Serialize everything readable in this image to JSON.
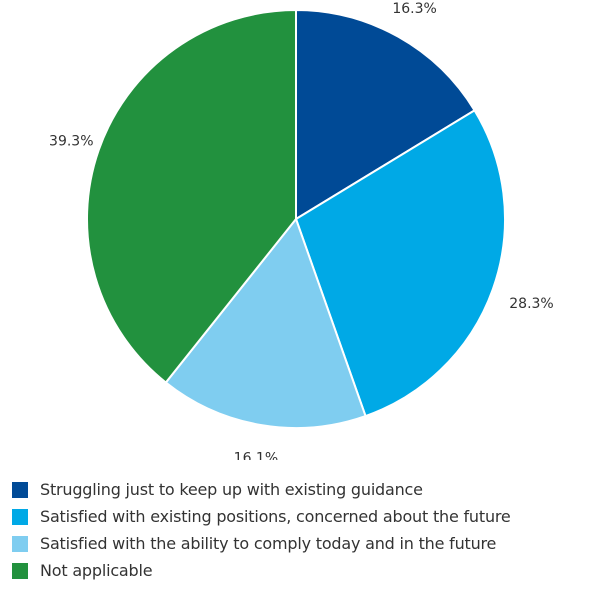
{
  "chart_data": {
    "type": "pie",
    "slices": [
      {
        "label": "Struggling just to keep up with existing guidance",
        "value": 16.3,
        "display": "16.3%",
        "color": "#004a96"
      },
      {
        "label": "Satisfied with existing positions, concerned about the future",
        "value": 28.3,
        "display": "28.3%",
        "color": "#00a9e6"
      },
      {
        "label": "Satisfied with the ability to comply today and in the future",
        "value": 16.1,
        "display": "16.1%",
        "color": "#7fcdf0"
      },
      {
        "label": "Not applicable",
        "value": 39.3,
        "display": "39.3%",
        "color": "#22913e"
      }
    ],
    "start_angle": "12 o'clock",
    "direction": "clockwise",
    "legend_position": "bottom-left"
  }
}
